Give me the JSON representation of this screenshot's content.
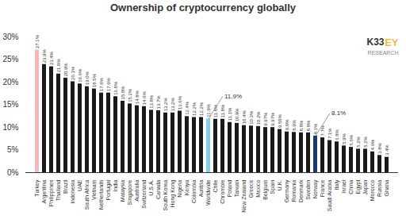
{
  "chart_data": {
    "type": "bar",
    "title": "Ownership of cryptocurrency globally",
    "categories": [
      "Turkey",
      "Argentina",
      "Philippines",
      "Thailand",
      "Brazil",
      "Indonesia",
      "UAE",
      "South Africa",
      "Vietnam",
      "Netherlands",
      "Portugal",
      "India",
      "Malaysia",
      "Singapore",
      "Australia",
      "Switzerland",
      "U.S.A.",
      "Canada",
      "South Korea",
      "Hong Kong",
      "Nigeria",
      "Kenya",
      "Colombia",
      "Austria",
      "Worldwide",
      "Chile",
      "Chrombie",
      "Poland",
      "Taiwan",
      "New Zealand",
      "Greece",
      "Mexico",
      "Belgium",
      "Spain",
      "U.K.",
      "Germany",
      "Romania",
      "Denmark",
      "Sweden",
      "Norway",
      "France",
      "Saudi Arabia",
      "Italy",
      "Israel",
      "China",
      "Egypt",
      "Japan",
      "Morocco",
      "Russia",
      "Ghana"
    ],
    "values": [
      27.1,
      23.9,
      23.4,
      21.8,
      20.9,
      20.1,
      19.6,
      19.0,
      18.5,
      17.6,
      17.6,
      16.8,
      15.8,
      15.2,
      14.8,
      14.6,
      13.8,
      13.7,
      13.2,
      13.2,
      13.6,
      12.4,
      12.2,
      12.2,
      11.9,
      11.8,
      11.8,
      11.1,
      10.9,
      10.4,
      10.3,
      10.2,
      9.97,
      9.97,
      9.55,
      9.0,
      8.9,
      8.8,
      8.8,
      8.1,
      7.7,
      7.1,
      6.8,
      5.9,
      5.6,
      5.2,
      5.2,
      4.6,
      3.8,
      3.4
    ],
    "value_labels": [
      "27.1%",
      "23.9%",
      "23.4%",
      "21.8%",
      "20.9%",
      "20.1%",
      "19.6%",
      "19.0%",
      "18.5%",
      "17.6%",
      "17.6%",
      "16.8%",
      "15.8%",
      "15.2%",
      "14.8%",
      "14.6%",
      "13.8%",
      "13.7%",
      "13.2%",
      "13.2%",
      "13.6%",
      "12.4%",
      "12.2%",
      "12.2%",
      "11.9%",
      "11.8%",
      "11.8%",
      "11.1%",
      "10.9%",
      "10.4%",
      "10.3%",
      "10.2%",
      "9.97%",
      "9.97%",
      "9.55%",
      "9.0%",
      "8.9%",
      "8.8%",
      "8.8%",
      "8.1%",
      "7.7%",
      "7.1%",
      "6.8%",
      "5.9%",
      "5.6%",
      "5.2%",
      "5.2%",
      "4.6%",
      "3.8%",
      "3.4%"
    ],
    "colors": [
      "#f4b8b8",
      "#1a1a1a",
      "#1a1a1a",
      "#1a1a1a",
      "#1a1a1a",
      "#1a1a1a",
      "#1a1a1a",
      "#1a1a1a",
      "#1a1a1a",
      "#1a1a1a",
      "#1a1a1a",
      "#1a1a1a",
      "#1a1a1a",
      "#1a1a1a",
      "#1a1a1a",
      "#1a1a1a",
      "#1a1a1a",
      "#1a1a1a",
      "#1a1a1a",
      "#1a1a1a",
      "#1a1a1a",
      "#1a1a1a",
      "#1a1a1a",
      "#1a1a1a",
      "#87ceeb",
      "#1a1a1a",
      "#1a1a1a",
      "#1a1a1a",
      "#1a1a1a",
      "#1a1a1a",
      "#1a1a1a",
      "#1a1a1a",
      "#1a1a1a",
      "#1a1a1a",
      "#1a1a1a",
      "#1a1a1a",
      "#1a1a1a",
      "#1a1a1a",
      "#1a1a1a",
      "#1a3a6b",
      "#1a1a1a",
      "#1a1a1a",
      "#1a1a1a",
      "#1a1a1a",
      "#1a1a1a",
      "#1a1a1a",
      "#1a1a1a",
      "#1a1a1a",
      "#1a1a1a",
      "#1a1a1a"
    ],
    "data_labels": true,
    "ylim": [
      0,
      30
    ],
    "yticks": [
      {
        "value": 0,
        "label": "0%"
      },
      {
        "value": 5,
        "label": "5%"
      },
      {
        "value": 10,
        "label": "10%"
      },
      {
        "value": 15,
        "label": "15%"
      },
      {
        "value": 20,
        "label": "20%"
      },
      {
        "value": 25,
        "label": "25%"
      },
      {
        "value": 30,
        "label": "30%"
      }
    ],
    "grid": false,
    "annotations": [
      {
        "text": "11.9%",
        "category": "Worldwide"
      },
      {
        "text": "8.1%",
        "category": "Norway"
      },
      {
        "text": "K33",
        "color": "#333333"
      },
      {
        "text": "EY",
        "color": "#f0c040"
      },
      {
        "text": "RESEARCH",
        "color": "#888888"
      }
    ]
  }
}
